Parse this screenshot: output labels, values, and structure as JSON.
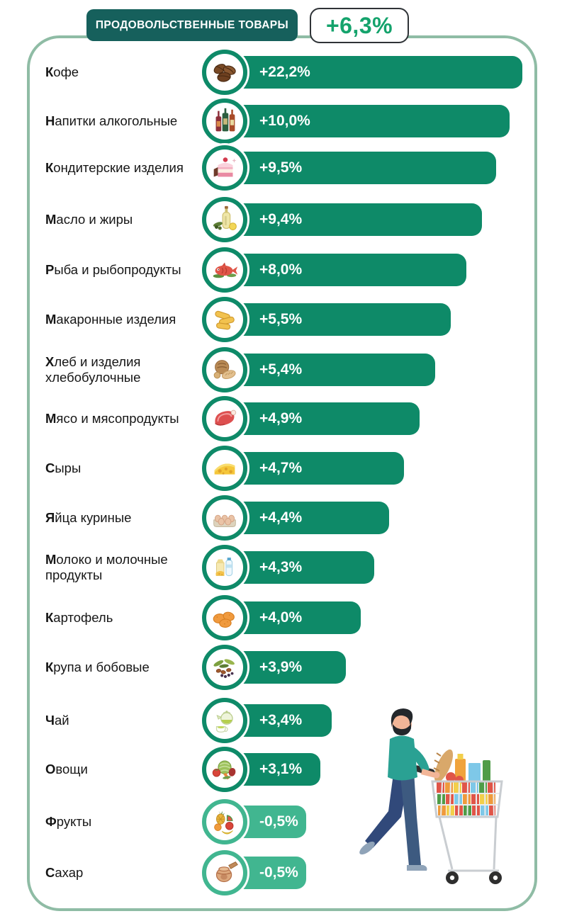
{
  "header": {
    "title": "ПРОДОВОЛЬСТВЕННЫЕ ТОВАРЫ",
    "total": "+6,3%"
  },
  "colors": {
    "bar_positive": "#0e8a68",
    "bar_negative": "#41b690",
    "header_bg": "#16605c",
    "total_text": "#14a36c",
    "frame_border": "#8fbca5",
    "label_text": "#161616"
  },
  "illustration": "man-pushing-shopping-cart-full-of-groceries",
  "chart_data": {
    "type": "bar",
    "orientation": "horizontal",
    "title": "ПРОДОВОЛЬСТВЕННЫЕ ТОВАРЫ",
    "overall_change_label": "+6,3%",
    "overall_change_pct": 6.3,
    "unit": "percent change",
    "legend": "none",
    "grid": "off",
    "categories": [
      "Кофе",
      "Напитки алкогольные",
      "Кондитерские изделия",
      "Масло и жиры",
      "Рыба и рыбопродукты",
      "Макаронные изделия",
      "Хлеб и изделия хлебобулочные",
      "Мясо и мясопродукты",
      "Сыры",
      "Яйца куриные",
      "Молоко и молочные продукты",
      "Картофель",
      "Крупа и бобовые",
      "Чай",
      "Овощи",
      "Фрукты",
      "Сахар"
    ],
    "values": [
      22.2,
      10.0,
      9.5,
      9.4,
      8.0,
      5.5,
      5.4,
      4.9,
      4.7,
      4.4,
      4.3,
      4.0,
      3.9,
      3.4,
      3.1,
      -0.5,
      -0.5
    ],
    "value_labels": [
      "+22,2%",
      "+10,0%",
      "+9,5%",
      "+9,4%",
      "+8,0%",
      "+5,5%",
      "+5,4%",
      "+4,9%",
      "+4,7%",
      "+4,4%",
      "+4,3%",
      "+4,0%",
      "+3,9%",
      "+3,4%",
      "+3,1%",
      "-0,5%",
      "-0,5%"
    ],
    "items": [
      {
        "label": "Кофе",
        "value_label": "+22,2%",
        "value": 22.2,
        "icon": "coffee-icon",
        "negative": false
      },
      {
        "label": "Напитки алкогольные",
        "value_label": "+10,0%",
        "value": 10.0,
        "icon": "alcohol-icon",
        "negative": false
      },
      {
        "label": "Кондитерские изделия",
        "value_label": "+9,5%",
        "value": 9.5,
        "icon": "confectionery-icon",
        "negative": false
      },
      {
        "label": "Масло и жиры",
        "value_label": "+9,4%",
        "value": 9.4,
        "icon": "oils-icon",
        "negative": false
      },
      {
        "label": "Рыба и рыбопродукты",
        "value_label": "+8,0%",
        "value": 8.0,
        "icon": "fish-icon",
        "negative": false
      },
      {
        "label": "Макаронные изделия",
        "value_label": "+5,5%",
        "value": 5.5,
        "icon": "pasta-icon",
        "negative": false
      },
      {
        "label": "Хлеб и изделия",
        "label2": "хлебобулочные",
        "value_label": "+5,4%",
        "value": 5.4,
        "icon": "bread-icon",
        "negative": false
      },
      {
        "label": "Мясо и мясопродукты",
        "value_label": "+4,9%",
        "value": 4.9,
        "icon": "meat-icon",
        "negative": false
      },
      {
        "label": "Сыры",
        "value_label": "+4,7%",
        "value": 4.7,
        "icon": "cheese-icon",
        "negative": false
      },
      {
        "label": "Яйца куриные",
        "value_label": "+4,4%",
        "value": 4.4,
        "icon": "eggs-icon",
        "negative": false
      },
      {
        "label": "Молоко и молочные",
        "label2": "продукты",
        "value_label": "+4,3%",
        "value": 4.3,
        "icon": "dairy-icon",
        "negative": false
      },
      {
        "label": "Картофель",
        "value_label": "+4,0%",
        "value": 4.0,
        "icon": "potato-icon",
        "negative": false
      },
      {
        "label": "Крупа и бобовые",
        "value_label": "+3,9%",
        "value": 3.9,
        "icon": "grains-icon",
        "negative": false
      },
      {
        "label": "Чай",
        "value_label": "+3,4%",
        "value": 3.4,
        "icon": "tea-icon",
        "negative": false
      },
      {
        "label": "Овощи",
        "value_label": "+3,1%",
        "value": 3.1,
        "icon": "vegetables-icon",
        "negative": false
      },
      {
        "label": "Фрукты",
        "value_label": "-0,5%",
        "value": -0.5,
        "icon": "fruits-icon",
        "negative": true
      },
      {
        "label": "Сахар",
        "value_label": "-0,5%",
        "value": -0.5,
        "icon": "sugar-icon",
        "negative": true
      }
    ]
  }
}
